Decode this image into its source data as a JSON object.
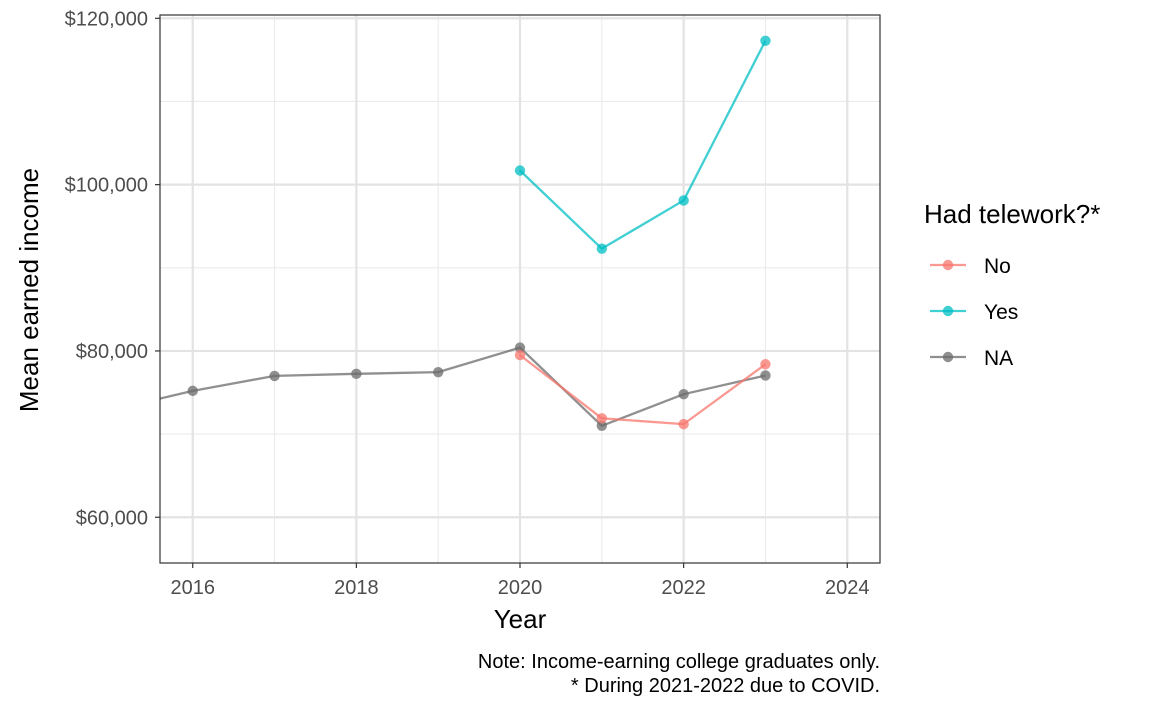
{
  "chart_data": {
    "type": "line",
    "xlabel": "Year",
    "ylabel": "Mean earned income",
    "xlim": [
      2015.6,
      2024.4
    ],
    "ylim": [
      54500,
      120400
    ],
    "x_ticks": [
      2016,
      2018,
      2020,
      2022,
      2024
    ],
    "x_minor_ticks": [
      2017,
      2019,
      2021,
      2023
    ],
    "y_ticks": [
      60000,
      80000,
      100000,
      120000
    ],
    "y_minor_ticks": [
      70000,
      90000,
      110000
    ],
    "tick_labels": {
      "x": [
        "2016",
        "2018",
        "2020",
        "2022",
        "2024"
      ],
      "y": [
        "$60,000",
        "$80,000",
        "$100,000",
        "$120,000"
      ]
    },
    "grid": true,
    "legend": {
      "title": "Had telework?*",
      "placement": "right"
    },
    "series": [
      {
        "name": "No",
        "color": "#F8766D",
        "x": [
          2020,
          2021,
          2022,
          2023
        ],
        "y": [
          79500,
          71900,
          71200,
          78400
        ]
      },
      {
        "name": "Yes",
        "color": "#00BFC4",
        "x": [
          2020,
          2021,
          2022,
          2023
        ],
        "y": [
          101700,
          92300,
          98100,
          117300
        ]
      },
      {
        "name": "NA",
        "color": "#6B6B6B",
        "x": [
          2015,
          2016,
          2017,
          2018,
          2019,
          2020,
          2021,
          2022,
          2023
        ],
        "y": [
          72900,
          75200,
          77000,
          77250,
          77450,
          80400,
          71000,
          74800,
          77050
        ]
      }
    ],
    "caption": [
      "Note: Income-earning college graduates only.",
      "* During 2021-2022 due to COVID."
    ]
  }
}
